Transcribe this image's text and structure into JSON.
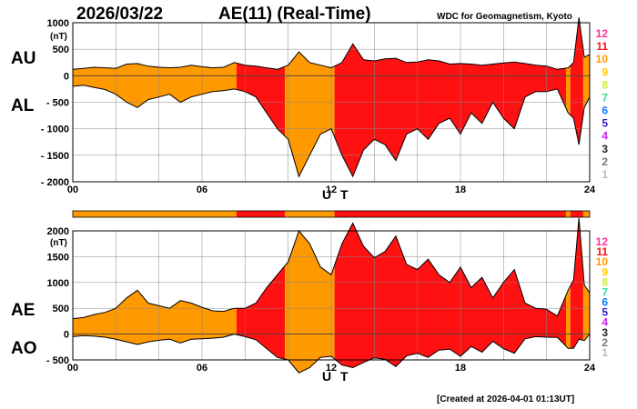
{
  "header": {
    "date": "2026/03/22",
    "title": "AE(11) (Real-Time)",
    "source": "WDC for Geomagnetism, Kyoto"
  },
  "footer": {
    "created": "[Created at 2026-04-01 01:13UT]"
  },
  "level_colors": {
    "12": "#ff3399",
    "11": "#ff1111",
    "10": "#ff9900",
    "9": "#ffcc00",
    "8": "#ccee33",
    "7": "#33dd99",
    "6": "#1177ff",
    "5": "#3322cc",
    "4": "#cc22ee",
    "3": "#222222",
    "2": "#777777",
    "1": "#bbbbbb"
  },
  "chart_data": [
    {
      "type": "area",
      "name": "AU/AL",
      "labels": {
        "upper": "AU",
        "lower": "AL",
        "unit": "(nT)",
        "xlabel": "U T"
      },
      "xlim": [
        0,
        24
      ],
      "ylim": [
        -2000,
        1000
      ],
      "x_ticks": [
        "00",
        "06",
        "12",
        "18",
        "24"
      ],
      "y_ticks": [
        "1000",
        "500",
        "0",
        "- 500",
        "- 1000",
        "- 1500",
        "- 2000"
      ],
      "legend_levels": [
        "12",
        "11",
        "10",
        "9",
        "8",
        "7",
        "6",
        "5",
        "4",
        "3",
        "2",
        "1"
      ],
      "grid": true,
      "series": [
        {
          "name": "AU",
          "x": [
            0,
            0.5,
            1,
            1.5,
            2,
            2.5,
            3,
            3.5,
            4,
            4.5,
            5,
            5.5,
            6,
            6.5,
            7,
            7.5,
            8,
            8.5,
            9,
            9.5,
            10,
            10.5,
            11,
            11.5,
            12,
            12.5,
            13,
            13.5,
            14,
            14.5,
            15,
            15.5,
            16,
            16.5,
            17,
            17.5,
            18,
            18.5,
            19,
            19.5,
            20,
            20.5,
            21,
            21.5,
            22,
            22.5,
            23,
            23.25,
            23.5,
            23.75,
            24
          ],
          "values": [
            120,
            140,
            160,
            150,
            140,
            220,
            230,
            180,
            160,
            150,
            160,
            200,
            170,
            150,
            160,
            250,
            200,
            180,
            150,
            120,
            200,
            450,
            250,
            200,
            150,
            250,
            600,
            300,
            280,
            320,
            330,
            250,
            260,
            300,
            280,
            220,
            230,
            220,
            200,
            220,
            240,
            260,
            230,
            200,
            180,
            120,
            150,
            250,
            1100,
            350,
            400
          ]
        },
        {
          "name": "AL",
          "x": [
            0,
            0.5,
            1,
            1.5,
            2,
            2.5,
            3,
            3.5,
            4,
            4.5,
            5,
            5.5,
            6,
            6.5,
            7,
            7.5,
            8,
            8.5,
            9,
            9.5,
            10,
            10.5,
            11,
            11.5,
            12,
            12.5,
            13,
            13.5,
            14,
            14.5,
            15,
            15.5,
            16,
            16.5,
            17,
            17.5,
            18,
            18.5,
            19,
            19.5,
            20,
            20.5,
            21,
            21.5,
            22,
            22.5,
            23,
            23.25,
            23.5,
            23.75,
            24
          ],
          "values": [
            -200,
            -180,
            -220,
            -260,
            -350,
            -500,
            -600,
            -450,
            -400,
            -350,
            -500,
            -400,
            -350,
            -300,
            -280,
            -250,
            -300,
            -400,
            -700,
            -1000,
            -1200,
            -1900,
            -1500,
            -1100,
            -1000,
            -1500,
            -1900,
            -1400,
            -1200,
            -1300,
            -1600,
            -1100,
            -1000,
            -1200,
            -900,
            -800,
            -1100,
            -700,
            -900,
            -500,
            -800,
            -1000,
            -400,
            -300,
            -300,
            -250,
            -700,
            -800,
            -1300,
            -600,
            -400
          ]
        }
      ],
      "color_segments": [
        {
          "from": 0,
          "to": 7.6,
          "level": "10"
        },
        {
          "from": 7.6,
          "to": 9.85,
          "level": "11"
        },
        {
          "from": 9.85,
          "to": 12.15,
          "level": "10"
        },
        {
          "from": 12.15,
          "to": 22.9,
          "level": "11"
        },
        {
          "from": 22.9,
          "to": 23.1,
          "level": "10"
        },
        {
          "from": 23.1,
          "to": 23.7,
          "level": "11"
        },
        {
          "from": 23.7,
          "to": 24,
          "level": "10"
        }
      ]
    },
    {
      "type": "area",
      "name": "AE/AO",
      "labels": {
        "upper": "AE",
        "lower": "AO",
        "unit": "(nT)",
        "xlabel": "U T"
      },
      "xlim": [
        0,
        24
      ],
      "ylim": [
        -500,
        2000
      ],
      "x_ticks": [
        "00",
        "06",
        "12",
        "18",
        "24"
      ],
      "y_ticks": [
        "2000",
        "1500",
        "1000",
        "500",
        "0",
        "- 500"
      ],
      "legend_levels": [
        "12",
        "11",
        "10",
        "9",
        "8",
        "7",
        "6",
        "5",
        "4",
        "3",
        "2",
        "1"
      ],
      "grid": true,
      "series": [
        {
          "name": "AE",
          "x": [
            0,
            0.5,
            1,
            1.5,
            2,
            2.5,
            3,
            3.5,
            4,
            4.5,
            5,
            5.5,
            6,
            6.5,
            7,
            7.5,
            8,
            8.5,
            9,
            9.5,
            10,
            10.5,
            11,
            11.5,
            12,
            12.5,
            13,
            13.5,
            14,
            14.5,
            15,
            15.5,
            16,
            16.5,
            17,
            17.5,
            18,
            18.5,
            19,
            19.5,
            20,
            20.5,
            21,
            21.5,
            22,
            22.5,
            23,
            23.25,
            23.5,
            23.75,
            24
          ],
          "values": [
            300,
            320,
            380,
            420,
            500,
            700,
            850,
            600,
            550,
            500,
            650,
            600,
            520,
            450,
            440,
            500,
            500,
            600,
            900,
            1150,
            1400,
            2000,
            1750,
            1300,
            1150,
            1750,
            2150,
            1700,
            1480,
            1600,
            1900,
            1350,
            1250,
            1450,
            1150,
            1000,
            1300,
            900,
            1100,
            700,
            1000,
            1250,
            600,
            500,
            480,
            350,
            850,
            1050,
            2250,
            950,
            800
          ]
        },
        {
          "name": "AO",
          "x": [
            0,
            0.5,
            1,
            1.5,
            2,
            2.5,
            3,
            3.5,
            4,
            4.5,
            5,
            5.5,
            6,
            6.5,
            7,
            7.5,
            8,
            8.5,
            9,
            9.5,
            10,
            10.5,
            11,
            11.5,
            12,
            12.5,
            13,
            13.5,
            14,
            14.5,
            15,
            15.5,
            16,
            16.5,
            17,
            17.5,
            18,
            18.5,
            19,
            19.5,
            20,
            20.5,
            21,
            21.5,
            22,
            22.5,
            23,
            23.25,
            23.5,
            23.75,
            24
          ],
          "values": [
            -50,
            -30,
            -40,
            -60,
            -100,
            -150,
            -200,
            -150,
            -120,
            -100,
            -170,
            -100,
            -90,
            -80,
            -60,
            0,
            -50,
            -110,
            -280,
            -450,
            -500,
            -750,
            -650,
            -450,
            -430,
            -600,
            -650,
            -550,
            -460,
            -490,
            -630,
            -420,
            -370,
            -450,
            -310,
            -290,
            -430,
            -240,
            -350,
            -140,
            -280,
            -370,
            -90,
            -50,
            -60,
            -65,
            -275,
            -275,
            -100,
            -125,
            0
          ]
        }
      ],
      "color_segments": [
        {
          "from": 0,
          "to": 7.6,
          "level": "10"
        },
        {
          "from": 7.6,
          "to": 9.85,
          "level": "11"
        },
        {
          "from": 9.85,
          "to": 12.15,
          "level": "10"
        },
        {
          "from": 12.15,
          "to": 22.9,
          "level": "11"
        },
        {
          "from": 22.9,
          "to": 23.1,
          "level": "10"
        },
        {
          "from": 23.1,
          "to": 23.7,
          "level": "11"
        },
        {
          "from": 23.7,
          "to": 24,
          "level": "10"
        }
      ]
    }
  ]
}
